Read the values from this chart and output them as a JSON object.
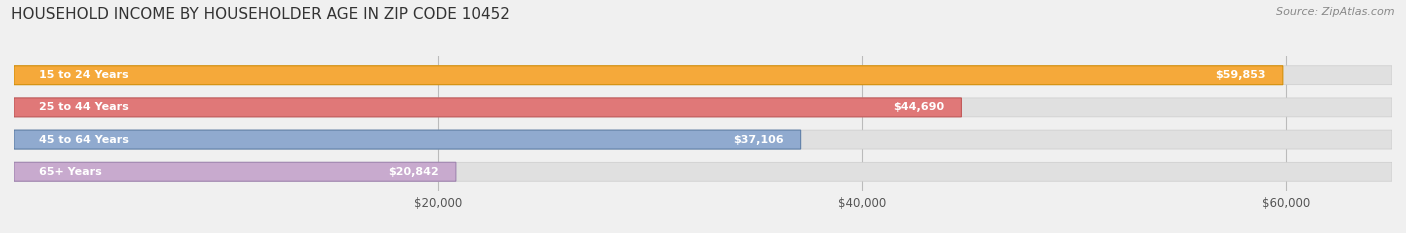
{
  "title": "HOUSEHOLD INCOME BY HOUSEHOLDER AGE IN ZIP CODE 10452",
  "source": "Source: ZipAtlas.com",
  "categories": [
    "15 to 24 Years",
    "25 to 44 Years",
    "45 to 64 Years",
    "65+ Years"
  ],
  "values": [
    59853,
    44690,
    37106,
    20842
  ],
  "bar_colors": [
    "#F5A93A",
    "#E07878",
    "#90AACF",
    "#C8AACE"
  ],
  "bar_edge_colors": [
    "#D4900A",
    "#C05858",
    "#6080A8",
    "#A085B0"
  ],
  "bg_color": "#f0f0f0",
  "bar_bg_color": "#e0e0e0",
  "xlim": [
    0,
    65000
  ],
  "xticks": [
    20000,
    40000,
    60000
  ],
  "xtick_labels": [
    "$20,000",
    "$40,000",
    "$60,000"
  ],
  "title_fontsize": 11,
  "source_fontsize": 8,
  "bar_height": 0.58,
  "figsize": [
    14.06,
    2.33
  ],
  "dpi": 100
}
